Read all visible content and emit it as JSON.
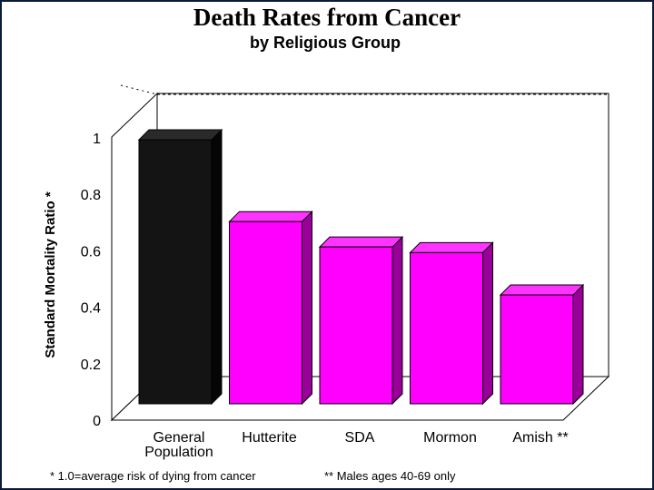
{
  "chart_data": {
    "type": "bar",
    "title": "Death Rates from Cancer",
    "subtitle": "by Religious Group",
    "ylabel": "Standard Mortality Ratio *",
    "xlabel": "",
    "ylim": [
      0,
      1
    ],
    "yticks": [
      "0",
      "0.2",
      "0.4",
      "0.6",
      "0.8",
      "1"
    ],
    "reference_line": 1.0,
    "categories": [
      [
        "General",
        "Population"
      ],
      [
        "Hutterite"
      ],
      [
        "SDA"
      ],
      [
        "Mormon"
      ],
      [
        "Amish **"
      ]
    ],
    "values": [
      1.0,
      0.71,
      0.62,
      0.6,
      0.45
    ],
    "colors": {
      "default_front": "#ff00ff",
      "default_top": "#ff33ff",
      "default_side": "#990099",
      "highlight_front": "#141414",
      "highlight_top": "#2a2a2a",
      "highlight_side": "#050505"
    },
    "highlight_index": 0
  },
  "footnotes": {
    "left": "* 1.0=average risk of dying from cancer",
    "right": "** Males ages 40-69 only"
  }
}
